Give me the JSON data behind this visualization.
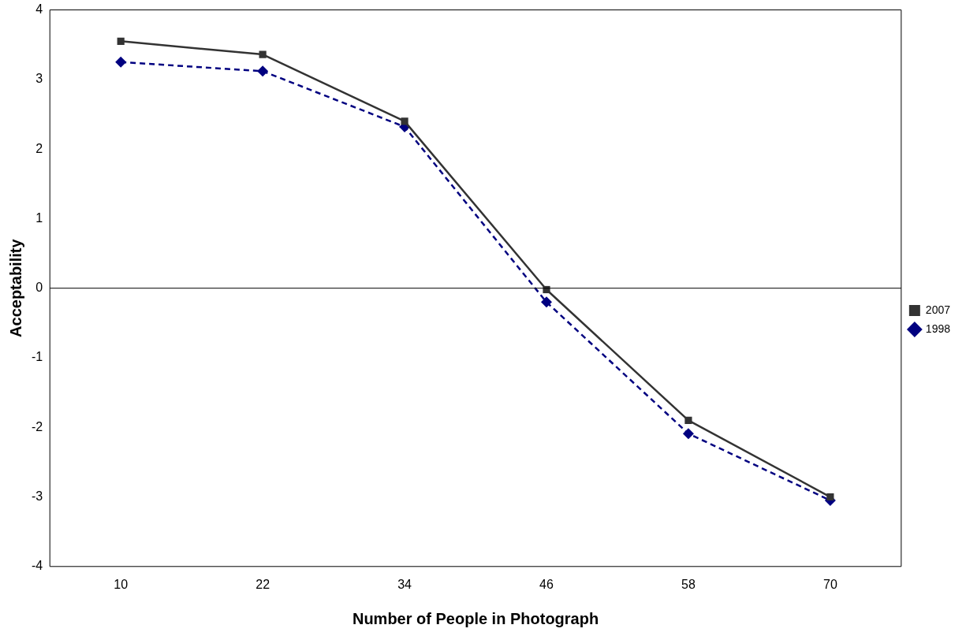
{
  "chart_data": {
    "type": "line",
    "xlabel": "Number of People in Photograph",
    "ylabel": "Acceptability",
    "categories": [
      "10",
      "22",
      "34",
      "46",
      "58",
      "70"
    ],
    "series": [
      {
        "name": "1998",
        "color": "#000080",
        "values": [
          3.25,
          3.12,
          2.32,
          -0.2,
          -2.09,
          -3.05
        ],
        "marker": "diamond",
        "line_style": "dashed"
      },
      {
        "name": "2007",
        "color": "#333333",
        "values": [
          3.55,
          3.36,
          2.4,
          -0.02,
          -1.9,
          -3.0
        ],
        "marker": "square",
        "line_style": "solid"
      }
    ],
    "ylim": [
      -4,
      4
    ],
    "yticks": [
      -4,
      -3,
      -2,
      -1,
      0,
      1,
      2,
      3,
      4
    ],
    "ref_lines": [
      {
        "axis": "y",
        "value": 0,
        "color": "#000000"
      }
    ],
    "grid": false,
    "legend": "right"
  }
}
